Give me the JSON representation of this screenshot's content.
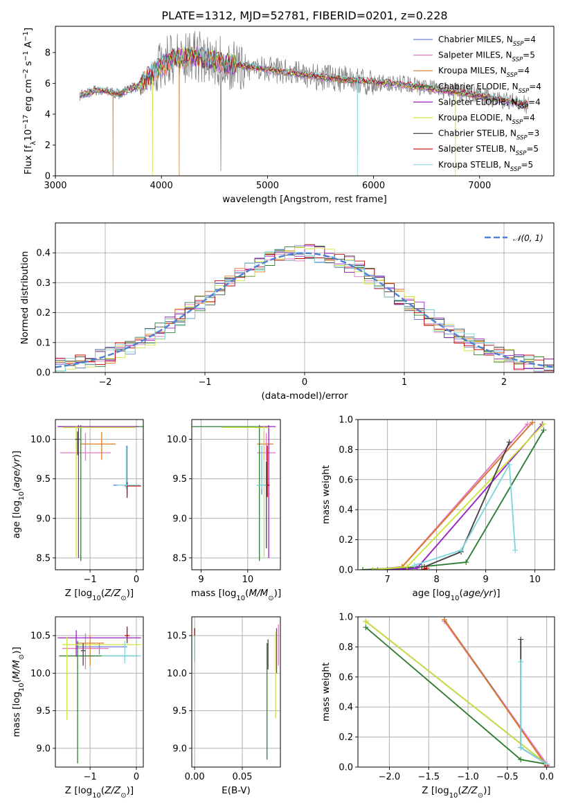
{
  "title": "PLATE=1312, MJD=52781, FIBERID=0201, z=0.228",
  "colors": {
    "grid": "#b0b0b0",
    "data_spectrum": "#808080",
    "normal_curve": "#4f81d4"
  },
  "legend_models": [
    {
      "name": "Chabrier MILES",
      "nssp": "4",
      "color": "#6f7fd8"
    },
    {
      "name": "Salpeter MILES",
      "nssp": "5",
      "color": "#e377c2"
    },
    {
      "name": "Kroupa MILES",
      "nssp": "4",
      "color": "#e07b24"
    },
    {
      "name": "Chabrier ELODIE",
      "nssp": "4",
      "color": "#2e7d32"
    },
    {
      "name": "Salpeter ELODIE",
      "nssp": "4",
      "color": "#9b1fc4"
    },
    {
      "name": "Kroupa ELODIE",
      "nssp": "4",
      "color": "#cbe43a"
    },
    {
      "name": "Chabrier STELIB",
      "nssp": "3",
      "color": "#444444"
    },
    {
      "name": "Salpeter STELIB",
      "nssp": "5",
      "color": "#c00000"
    },
    {
      "name": "Kroupa STELIB",
      "nssp": "5",
      "color": "#7fd6dd"
    }
  ],
  "chart_data": [
    {
      "id": "spectrum",
      "type": "line",
      "title": "PLATE=1312, MJD=52781, FIBERID=0201, z=0.228",
      "xlabel": "wavelength [Angstrom, rest frame]",
      "ylabel": "Flux [f_λ 10^-17 erg cm^-2 s^-1 A^-1]",
      "xlim": [
        3000,
        7700
      ],
      "ylim": [
        0,
        9.7
      ],
      "x_ticks": [
        "3000",
        "4000",
        "5000",
        "6000",
        "7000"
      ],
      "y_ticks": [
        "0",
        "2",
        "4",
        "6",
        "8"
      ],
      "legend_position": "top-right",
      "continuum_points": [
        {
          "x": 3230,
          "y": 5.2
        },
        {
          "x": 3400,
          "y": 5.6
        },
        {
          "x": 3600,
          "y": 5.3
        },
        {
          "x": 3800,
          "y": 5.9
        },
        {
          "x": 3950,
          "y": 6.9
        },
        {
          "x": 4100,
          "y": 7.6
        },
        {
          "x": 4300,
          "y": 7.8
        },
        {
          "x": 4600,
          "y": 7.3
        },
        {
          "x": 5000,
          "y": 6.9
        },
        {
          "x": 5400,
          "y": 6.5
        },
        {
          "x": 5800,
          "y": 6.2
        },
        {
          "x": 6200,
          "y": 6.0
        },
        {
          "x": 6600,
          "y": 5.6
        },
        {
          "x": 7000,
          "y": 5.2
        },
        {
          "x": 7450,
          "y": 4.6
        }
      ]
    },
    {
      "id": "residuals",
      "type": "line",
      "xlabel": "(data-model)/error",
      "ylabel": "Normed distribution",
      "xlim": [
        -2.5,
        2.5
      ],
      "ylim": [
        0,
        0.5
      ],
      "x_ticks": [
        "−2",
        "−1",
        "0",
        "1",
        "2"
      ],
      "y_ticks": [
        "0.0",
        "0.1",
        "0.2",
        "0.3",
        "0.4"
      ],
      "legend": "N(0,1)",
      "legend_position": "top-right"
    },
    {
      "id": "age_vs_Z",
      "type": "scatter",
      "xlabel": "Z [log10(Z/Z⊙)]",
      "ylabel": "age [log10(age/yr)]",
      "xlim": [
        -1.75,
        0.15
      ],
      "ylim": [
        8.35,
        10.25
      ],
      "x_ticks": [
        "−1",
        "0"
      ],
      "y_ticks": [
        "8.5",
        "9.0",
        "9.5",
        "10.0"
      ],
      "points": [
        {
          "model": 0,
          "x": -0.2,
          "y": 9.42,
          "x_lo": 0.3,
          "x_hi": 0.05,
          "y_lo": 0.12,
          "y_hi": 0.5
        },
        {
          "model": 1,
          "x": -1.1,
          "y": 9.83,
          "x_lo": 0.55,
          "x_hi": 0.55,
          "y_lo": 0.1,
          "y_hi": 0.25
        },
        {
          "model": 2,
          "x": -0.75,
          "y": 9.94,
          "x_lo": 0.45,
          "x_hi": 0.3,
          "y_lo": 0.2,
          "y_hi": 0.15
        },
        {
          "model": 3,
          "x": -1.2,
          "y": 10.16,
          "x_lo": 0.5,
          "x_hi": 1.35,
          "y_lo": 1.7,
          "y_hi": 0.02
        },
        {
          "model": 4,
          "x": -1.25,
          "y": 10.16,
          "x_lo": 0.45,
          "x_hi": 1.3,
          "y_lo": 1.66,
          "y_hi": 0.02
        },
        {
          "model": 5,
          "x": -1.3,
          "y": 10.15,
          "x_lo": 0.3,
          "x_hi": 1.3,
          "y_lo": 1.64,
          "y_hi": 0.02
        },
        {
          "model": 6,
          "x": -1.27,
          "y": 10.0,
          "x_lo": 0.05,
          "x_hi": 0.05,
          "y_lo": 0.2,
          "y_hi": 0.1
        },
        {
          "model": 7,
          "x": -0.2,
          "y": 9.41,
          "x_lo": 0.05,
          "x_hi": 0.3,
          "y_lo": 0.15,
          "y_hi": 0.05
        },
        {
          "model": 8,
          "x": -0.22,
          "y": 9.42,
          "x_lo": 0.2,
          "x_hi": 0.3,
          "y_lo": 0.05,
          "y_hi": 0.5
        }
      ]
    },
    {
      "id": "age_vs_mass",
      "type": "scatter",
      "xlabel": "mass [log10(M/M⊙)]",
      "ylabel": "",
      "xlim": [
        8.8,
        10.7
      ],
      "ylim": [
        8.35,
        10.25
      ],
      "x_ticks": [
        "9",
        "10"
      ],
      "y_ticks": [
        "8.5",
        "9.0",
        "9.5",
        "10.0"
      ],
      "points": [
        {
          "model": 0,
          "x": 10.3,
          "y": 9.42,
          "x_lo": 0.1,
          "x_hi": 0.1,
          "y_lo": 0.12,
          "y_hi": 0.5
        },
        {
          "model": 1,
          "x": 10.4,
          "y": 9.83,
          "x_lo": 0.2,
          "x_hi": 0.2,
          "y_lo": 0.1,
          "y_hi": 0.25
        },
        {
          "model": 2,
          "x": 10.35,
          "y": 9.94,
          "x_lo": 0.15,
          "x_hi": 0.2,
          "y_lo": 0.2,
          "y_hi": 0.15
        },
        {
          "model": 3,
          "x": 10.25,
          "y": 10.16,
          "x_lo": 1.5,
          "x_hi": 0.2,
          "y_lo": 1.7,
          "y_hi": 0.02
        },
        {
          "model": 4,
          "x": 10.45,
          "y": 10.16,
          "x_lo": 0.2,
          "x_hi": 0.15,
          "y_lo": 1.66,
          "y_hi": 0.02
        },
        {
          "model": 5,
          "x": 10.35,
          "y": 10.15,
          "x_lo": 0.9,
          "x_hi": 0.1,
          "y_lo": 1.64,
          "y_hi": 0.02
        },
        {
          "model": 6,
          "x": 10.4,
          "y": 9.42,
          "x_lo": 0.05,
          "x_hi": 0.05,
          "y_lo": 0.8,
          "y_hi": 0.3
        },
        {
          "model": 7,
          "x": 10.42,
          "y": 9.42,
          "x_lo": 0.05,
          "x_hi": 0.05,
          "y_lo": 0.15,
          "y_hi": 0.5
        },
        {
          "model": 8,
          "x": 10.3,
          "y": 9.42,
          "x_lo": 0.1,
          "x_hi": 0.1,
          "y_lo": 0.05,
          "y_hi": 0.5
        }
      ]
    },
    {
      "id": "mass_weight_vs_age",
      "type": "line",
      "xlabel": "age [log10(age/yr)]",
      "ylabel": "mass weight",
      "xlim": [
        6.4,
        10.4
      ],
      "ylim": [
        0,
        1
      ],
      "x_ticks": [
        "7",
        "8",
        "9",
        "10"
      ],
      "y_ticks": [
        "0.0",
        "0.2",
        "0.4",
        "0.6",
        "0.8",
        "1.0"
      ],
      "series": [
        {
          "model": 0,
          "x": [
            6.7,
            7.3,
            9.95
          ],
          "y": [
            0.0,
            0.02,
            0.98
          ]
        },
        {
          "model": 1,
          "x": [
            6.8,
            7.3,
            9.85
          ],
          "y": [
            0.0,
            0.02,
            0.97
          ]
        },
        {
          "model": 2,
          "x": [
            6.8,
            7.3,
            9.95
          ],
          "y": [
            0.0,
            0.02,
            0.98
          ]
        },
        {
          "model": 3,
          "x": [
            6.5,
            7.7,
            8.6,
            10.18
          ],
          "y": [
            0.0,
            0.02,
            0.05,
            0.93
          ]
        },
        {
          "model": 4,
          "x": [
            7.0,
            7.6,
            10.15
          ],
          "y": [
            0.0,
            0.01,
            0.97
          ]
        },
        {
          "model": 5,
          "x": [
            6.7,
            7.4,
            10.18
          ],
          "y": [
            0.0,
            0.02,
            0.97
          ]
        },
        {
          "model": 6,
          "x": [
            7.75,
            8.5,
            9.48
          ],
          "y": [
            0.02,
            0.12,
            0.85
          ]
        },
        {
          "model": 7,
          "x": [
            7.7,
            7.8
          ],
          "y": [
            0.0,
            0.01
          ]
        },
        {
          "model": 8,
          "x": [
            7.55,
            8.5,
            9.48,
            9.6
          ],
          "y": [
            0.03,
            0.13,
            0.7,
            0.13
          ]
        }
      ]
    },
    {
      "id": "mass_vs_Z",
      "type": "scatter",
      "xlabel": "Z [log10(Z/Z⊙)]",
      "ylabel": "mass [log10(M/M⊙)]",
      "xlim": [
        -1.75,
        0.15
      ],
      "ylim": [
        8.75,
        10.75
      ],
      "x_ticks": [
        "−1",
        "0"
      ],
      "y_ticks": [
        "9.0",
        "9.5",
        "10.0",
        "10.5"
      ],
      "points": [
        {
          "model": 0,
          "x": -0.8,
          "y": 10.35,
          "x_lo": 0.5,
          "x_hi": 0.6,
          "y_lo": 0.1,
          "y_hi": 0.05
        },
        {
          "model": 1,
          "x": -1.1,
          "y": 10.33,
          "x_lo": 0.5,
          "x_hi": 0.5,
          "y_lo": 0.28,
          "y_hi": 0.2
        },
        {
          "model": 2,
          "x": -1.0,
          "y": 10.4,
          "x_lo": 0.3,
          "x_hi": 0.3,
          "y_lo": 0.3,
          "y_hi": 0.1
        },
        {
          "model": 3,
          "x": -1.27,
          "y": 10.23,
          "x_lo": 0.4,
          "x_hi": 1.3,
          "y_lo": 1.43,
          "y_hi": 0.2
        },
        {
          "model": 4,
          "x": -1.3,
          "y": 10.47,
          "x_lo": 0.4,
          "x_hi": 1.4,
          "y_lo": 0.25,
          "y_hi": 0.1
        },
        {
          "model": 5,
          "x": -1.5,
          "y": 10.38,
          "x_lo": 0.1,
          "x_hi": 1.6,
          "y_lo": 1.0,
          "y_hi": 0.1
        },
        {
          "model": 6,
          "x": -1.15,
          "y": 10.3,
          "x_lo": 0.05,
          "x_hi": 0.05,
          "y_lo": 0.2,
          "y_hi": 0.1
        },
        {
          "model": 7,
          "x": -0.2,
          "y": 10.5,
          "x_lo": 0.05,
          "x_hi": 0.05,
          "y_lo": 0.1,
          "y_hi": 0.12
        },
        {
          "model": 8,
          "x": -0.25,
          "y": 10.23,
          "x_lo": 0.5,
          "x_hi": 0.35,
          "y_lo": 0.1,
          "y_hi": 0.2
        }
      ]
    },
    {
      "id": "mass_vs_EBV",
      "type": "scatter",
      "xlabel": "E(B-V)",
      "ylabel": "",
      "xlim": [
        -0.003,
        0.09
      ],
      "ylim": [
        8.75,
        10.75
      ],
      "x_ticks": [
        "0.00",
        "0.05"
      ],
      "y_ticks": [
        "9.0",
        "9.5",
        "10.0",
        "10.5"
      ],
      "points": [
        {
          "model": 0,
          "x": 0.0,
          "y": 10.35,
          "x_lo": 0,
          "x_hi": 0,
          "y_lo": 0.15,
          "y_hi": 0.1
        },
        {
          "model": 1,
          "x": 0.088,
          "y": 10.4,
          "x_lo": 0,
          "x_hi": 0,
          "y_lo": 0.3,
          "y_hi": 0.25
        },
        {
          "model": 2,
          "x": 0.0,
          "y": 10.45,
          "x_lo": 0,
          "x_hi": 0,
          "y_lo": 0.3,
          "y_hi": 0.15
        },
        {
          "model": 3,
          "x": 0.076,
          "y": 10.0,
          "x_lo": 0,
          "x_hi": 0,
          "y_lo": 1.15,
          "y_hi": 0.4
        },
        {
          "model": 4,
          "x": 0.086,
          "y": 10.3,
          "x_lo": 0,
          "x_hi": 0,
          "y_lo": 0.3,
          "y_hi": 0.3
        },
        {
          "model": 5,
          "x": 0.085,
          "y": 10.0,
          "x_lo": 0,
          "x_hi": 0,
          "y_lo": 0.6,
          "y_hi": 0.55
        },
        {
          "model": 6,
          "x": 0.077,
          "y": 10.3,
          "x_lo": 0,
          "x_hi": 0,
          "y_lo": 0.25,
          "y_hi": 0.15
        },
        {
          "model": 7,
          "x": 0.0,
          "y": 10.45,
          "x_lo": 0,
          "x_hi": 0,
          "y_lo": 0.3,
          "y_hi": 0.15
        },
        {
          "model": 8,
          "x": 0.0,
          "y": 10.3,
          "x_lo": 0,
          "x_hi": 0,
          "y_lo": 0.15,
          "y_hi": 0.2
        }
      ]
    },
    {
      "id": "mass_weight_vs_Z",
      "type": "line",
      "xlabel": "Z [log10(Z/Z⊙)]",
      "ylabel": "mass weight",
      "xlim": [
        -2.4,
        0.1
      ],
      "ylim": [
        0,
        1
      ],
      "x_ticks": [
        "−2.0",
        "−1.5",
        "−1.0",
        "−0.5",
        "0.0"
      ],
      "y_ticks": [
        "0.0",
        "0.2",
        "0.4",
        "0.6",
        "0.8",
        "1.0"
      ],
      "series": [
        {
          "model": 0,
          "x": [
            -1.3,
            0.0
          ],
          "y": [
            0.98,
            0.02
          ]
        },
        {
          "model": 1,
          "x": [
            -1.3,
            0.0
          ],
          "y": [
            0.97,
            0.02
          ]
        },
        {
          "model": 2,
          "x": [
            -1.3,
            -0.02
          ],
          "y": [
            0.98,
            0.02
          ]
        },
        {
          "model": 3,
          "x": [
            -2.3,
            -0.33,
            0.0
          ],
          "y": [
            0.93,
            0.05,
            0.02
          ]
        },
        {
          "model": 4,
          "x": [
            -2.3,
            0.0
          ],
          "y": [
            0.97,
            0.02
          ]
        },
        {
          "model": 5,
          "x": [
            -2.3,
            0.0
          ],
          "y": [
            0.97,
            0.02
          ]
        },
        {
          "model": 6,
          "x": [
            -0.33,
            -0.33,
            0.0
          ],
          "y": [
            0.85,
            0.13,
            0.02
          ]
        },
        {
          "model": 7,
          "x": [
            0.0,
            0.0
          ],
          "y": [
            0.0,
            0.01
          ]
        },
        {
          "model": 8,
          "x": [
            -0.33,
            -0.33,
            0.0
          ],
          "y": [
            0.7,
            0.13,
            0.02
          ]
        }
      ]
    }
  ]
}
